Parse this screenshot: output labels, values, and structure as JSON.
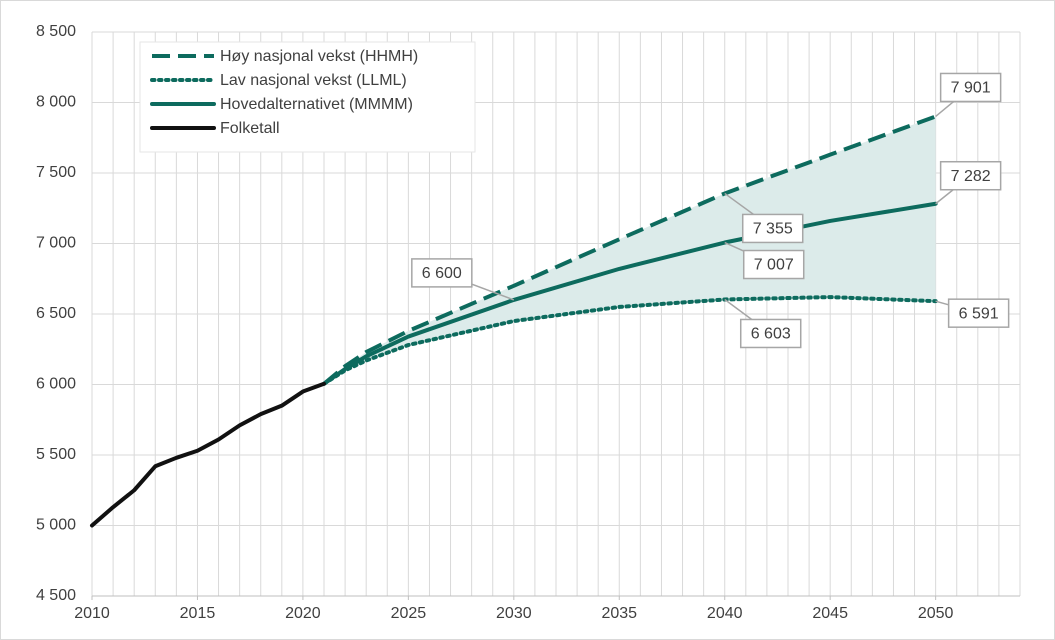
{
  "chart_data": {
    "type": "line",
    "xlim": [
      2010,
      2054
    ],
    "xticks": [
      2010,
      2015,
      2020,
      2025,
      2030,
      2035,
      2040,
      2045,
      2050
    ],
    "xminor": [
      2010,
      2011,
      2012,
      2013,
      2014,
      2015,
      2016,
      2017,
      2018,
      2019,
      2020,
      2021,
      2022,
      2023,
      2024,
      2025,
      2026,
      2027,
      2028,
      2029,
      2030,
      2031,
      2032,
      2033,
      2034,
      2035,
      2036,
      2037,
      2038,
      2039,
      2040,
      2041,
      2042,
      2043,
      2044,
      2045,
      2046,
      2047,
      2048,
      2049,
      2050,
      2051,
      2052,
      2053,
      2054
    ],
    "ylim": [
      4500,
      8500
    ],
    "yticks": [
      {
        "value": 4500,
        "label": "4 500"
      },
      {
        "value": 5000,
        "label": "5 000"
      },
      {
        "value": 5500,
        "label": "5 500"
      },
      {
        "value": 6000,
        "label": "6 000"
      },
      {
        "value": 6500,
        "label": "6 500"
      },
      {
        "value": 7000,
        "label": "7 000"
      },
      {
        "value": 7500,
        "label": "7 500"
      },
      {
        "value": 8000,
        "label": "8 000"
      },
      {
        "value": 8500,
        "label": "8 500"
      }
    ],
    "grid": true,
    "legend": "top-left",
    "shade_color": "#dcebea",
    "series": [
      {
        "name": "Høy nasjonal vekst (HHMH)",
        "color": "#0d6b5e",
        "style": "dashed",
        "x": [
          2021,
          2022,
          2023,
          2025,
          2030,
          2035,
          2040,
          2045,
          2050
        ],
        "values": [
          6005,
          6130,
          6230,
          6380,
          6700,
          7030,
          7355,
          7630,
          7901
        ]
      },
      {
        "name": "Lav nasjonal vekst (LLML)",
        "color": "#0d6b5e",
        "style": "dotted",
        "x": [
          2021,
          2022,
          2023,
          2025,
          2030,
          2035,
          2040,
          2045,
          2050
        ],
        "values": [
          6005,
          6100,
          6170,
          6280,
          6450,
          6550,
          6603,
          6620,
          6591
        ]
      },
      {
        "name": "Hovedalternativet (MMMM)",
        "color": "#0d6b5e",
        "style": "solid",
        "x": [
          2021,
          2022,
          2023,
          2025,
          2030,
          2035,
          2040,
          2045,
          2050
        ],
        "values": [
          6005,
          6110,
          6200,
          6340,
          6600,
          6820,
          7007,
          7160,
          7282
        ]
      },
      {
        "name": "Folketall",
        "color": "#111111",
        "style": "solid",
        "x": [
          2010,
          2011,
          2012,
          2013,
          2014,
          2015,
          2016,
          2017,
          2018,
          2019,
          2020,
          2021
        ],
        "values": [
          5000,
          5130,
          5250,
          5420,
          5480,
          5530,
          5610,
          5710,
          5790,
          5850,
          5950,
          6005
        ]
      }
    ],
    "annotations": [
      {
        "x": 2050,
        "value": 7901,
        "label": "7 901"
      },
      {
        "x": 2040,
        "value": 7355,
        "label": "7 355"
      },
      {
        "x": 2050,
        "value": 7282,
        "label": "7 282"
      },
      {
        "x": 2040,
        "value": 7007,
        "label": "7 007"
      },
      {
        "x": 2030,
        "value": 6600,
        "label": "6 600"
      },
      {
        "x": 2040,
        "value": 6603,
        "label": "6 603"
      },
      {
        "x": 2050,
        "value": 6591,
        "label": "6 591"
      }
    ]
  }
}
